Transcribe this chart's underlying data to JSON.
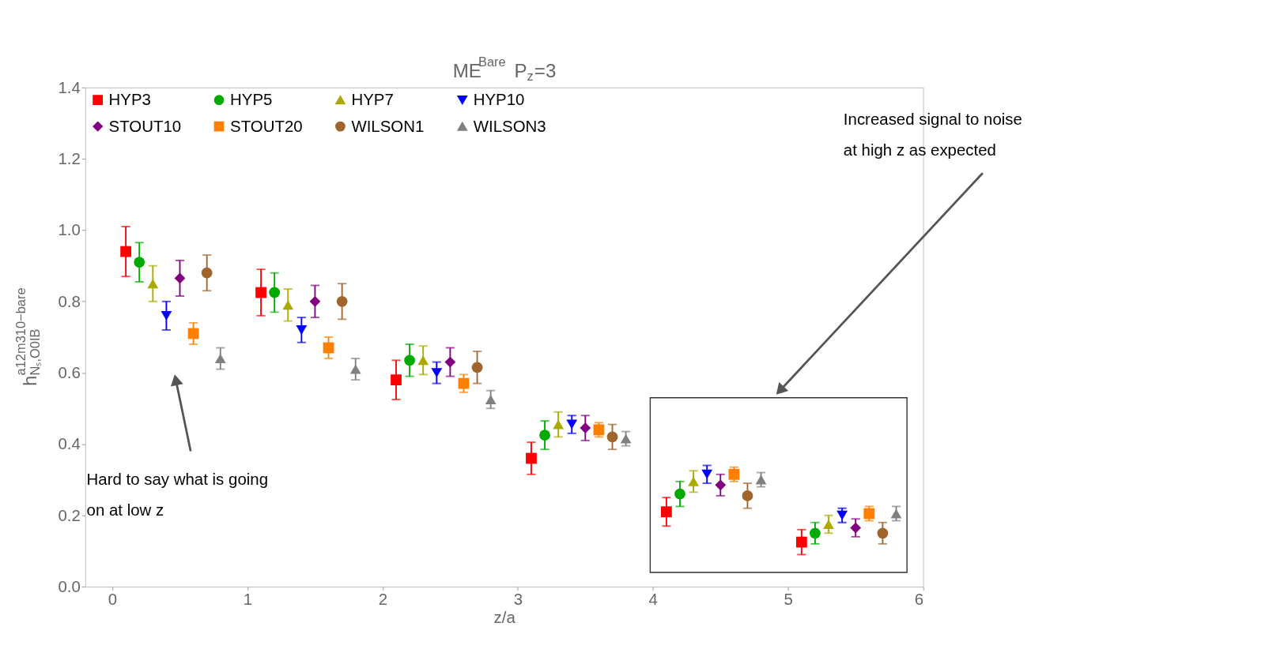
{
  "chart_data": {
    "type": "scatter",
    "title": "ME$^{Bare}$ P$_{z}$=3",
    "xlabel": "z/a",
    "ylabel": "h$^{a12m310−bare}$$_{Nₛ,O0IB}$",
    "xlim": [
      -0.2,
      6
    ],
    "xticks": [
      0,
      1,
      2,
      3,
      4,
      5,
      6
    ],
    "ylim": [
      0,
      1.4
    ],
    "yticks": [
      {
        "value": 0,
        "label": "0.0"
      },
      0.2,
      0.4,
      0.6,
      0.8,
      {
        "value": 1,
        "label": "1.0"
      },
      1.2,
      1.4
    ],
    "grid": false,
    "legend": "top left",
    "annotations": [
      "Hard to say what is going on at low z",
      "Increased signal to noise at high z as expected"
    ],
    "series": [
      {
        "name": "HYP3",
        "color": "#ff0000",
        "marker": "square",
        "x": [
          0.1,
          1.1,
          2.1,
          3.1,
          4.1,
          5.1
        ],
        "values": [
          0.94,
          0.825,
          0.58,
          0.36,
          0.21,
          0.125
        ],
        "errors": [
          0.07,
          0.065,
          0.055,
          0.045,
          0.04,
          0.035
        ]
      },
      {
        "name": "HYP5",
        "color": "#00aa00",
        "marker": "circle",
        "x": [
          0.2,
          1.2,
          2.2,
          3.2,
          4.2,
          5.2
        ],
        "values": [
          0.91,
          0.825,
          0.635,
          0.425,
          0.26,
          0.15
        ],
        "errors": [
          0.055,
          0.055,
          0.045,
          0.04,
          0.035,
          0.03
        ]
      },
      {
        "name": "HYP7",
        "color": "#aaaa00",
        "marker": "triangle",
        "x": [
          0.3,
          1.3,
          2.3,
          3.3,
          4.3,
          5.3
        ],
        "values": [
          0.85,
          0.79,
          0.635,
          0.455,
          0.295,
          0.175
        ],
        "errors": [
          0.05,
          0.045,
          0.04,
          0.035,
          0.03,
          0.025
        ]
      },
      {
        "name": "HYP10",
        "color": "#0000ff",
        "marker": "triangle-down",
        "x": [
          0.4,
          1.4,
          2.4,
          3.4,
          4.4,
          5.4
        ],
        "values": [
          0.76,
          0.72,
          0.6,
          0.455,
          0.315,
          0.2
        ],
        "errors": [
          0.04,
          0.035,
          0.03,
          0.025,
          0.025,
          0.02
        ]
      },
      {
        "name": "STOUT10",
        "color": "#800080",
        "marker": "diamond",
        "x": [
          0.5,
          1.5,
          2.5,
          3.5,
          4.5,
          5.5
        ],
        "values": [
          0.865,
          0.8,
          0.63,
          0.445,
          0.285,
          0.165
        ],
        "errors": [
          0.05,
          0.045,
          0.04,
          0.035,
          0.03,
          0.025
        ]
      },
      {
        "name": "STOUT20",
        "color": "#ff8000",
        "marker": "square",
        "x": [
          0.6,
          1.6,
          2.6,
          3.6,
          4.6,
          5.6
        ],
        "values": [
          0.71,
          0.67,
          0.57,
          0.44,
          0.315,
          0.205
        ],
        "errors": [
          0.03,
          0.03,
          0.025,
          0.02,
          0.02,
          0.02
        ]
      },
      {
        "name": "WILSON1",
        "color": "#a0642d",
        "marker": "circle",
        "x": [
          0.7,
          1.7,
          2.7,
          3.7,
          4.7,
          5.7
        ],
        "values": [
          0.88,
          0.8,
          0.615,
          0.42,
          0.255,
          0.15
        ],
        "errors": [
          0.05,
          0.05,
          0.045,
          0.035,
          0.035,
          0.03
        ]
      },
      {
        "name": "WILSON3",
        "color": "#808080",
        "marker": "triangle",
        "x": [
          0.8,
          1.8,
          2.8,
          3.8,
          4.8,
          5.8
        ],
        "values": [
          0.64,
          0.61,
          0.525,
          0.415,
          0.3,
          0.205
        ],
        "errors": [
          0.03,
          0.03,
          0.025,
          0.02,
          0.02,
          0.02
        ]
      }
    ]
  }
}
